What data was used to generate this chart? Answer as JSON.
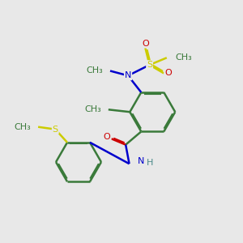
{
  "bg_color": "#e8e8e8",
  "bond_color": "#3a7a3a",
  "atom_colors": {
    "N": "#0000cc",
    "O": "#cc0000",
    "S": "#cccc00",
    "H": "#4a8a8a",
    "C": "#3a7a3a"
  },
  "lw": 1.8,
  "dbo": 0.055,
  "fs": 8.0,
  "xlim": [
    0,
    10
  ],
  "ylim": [
    0,
    10
  ]
}
